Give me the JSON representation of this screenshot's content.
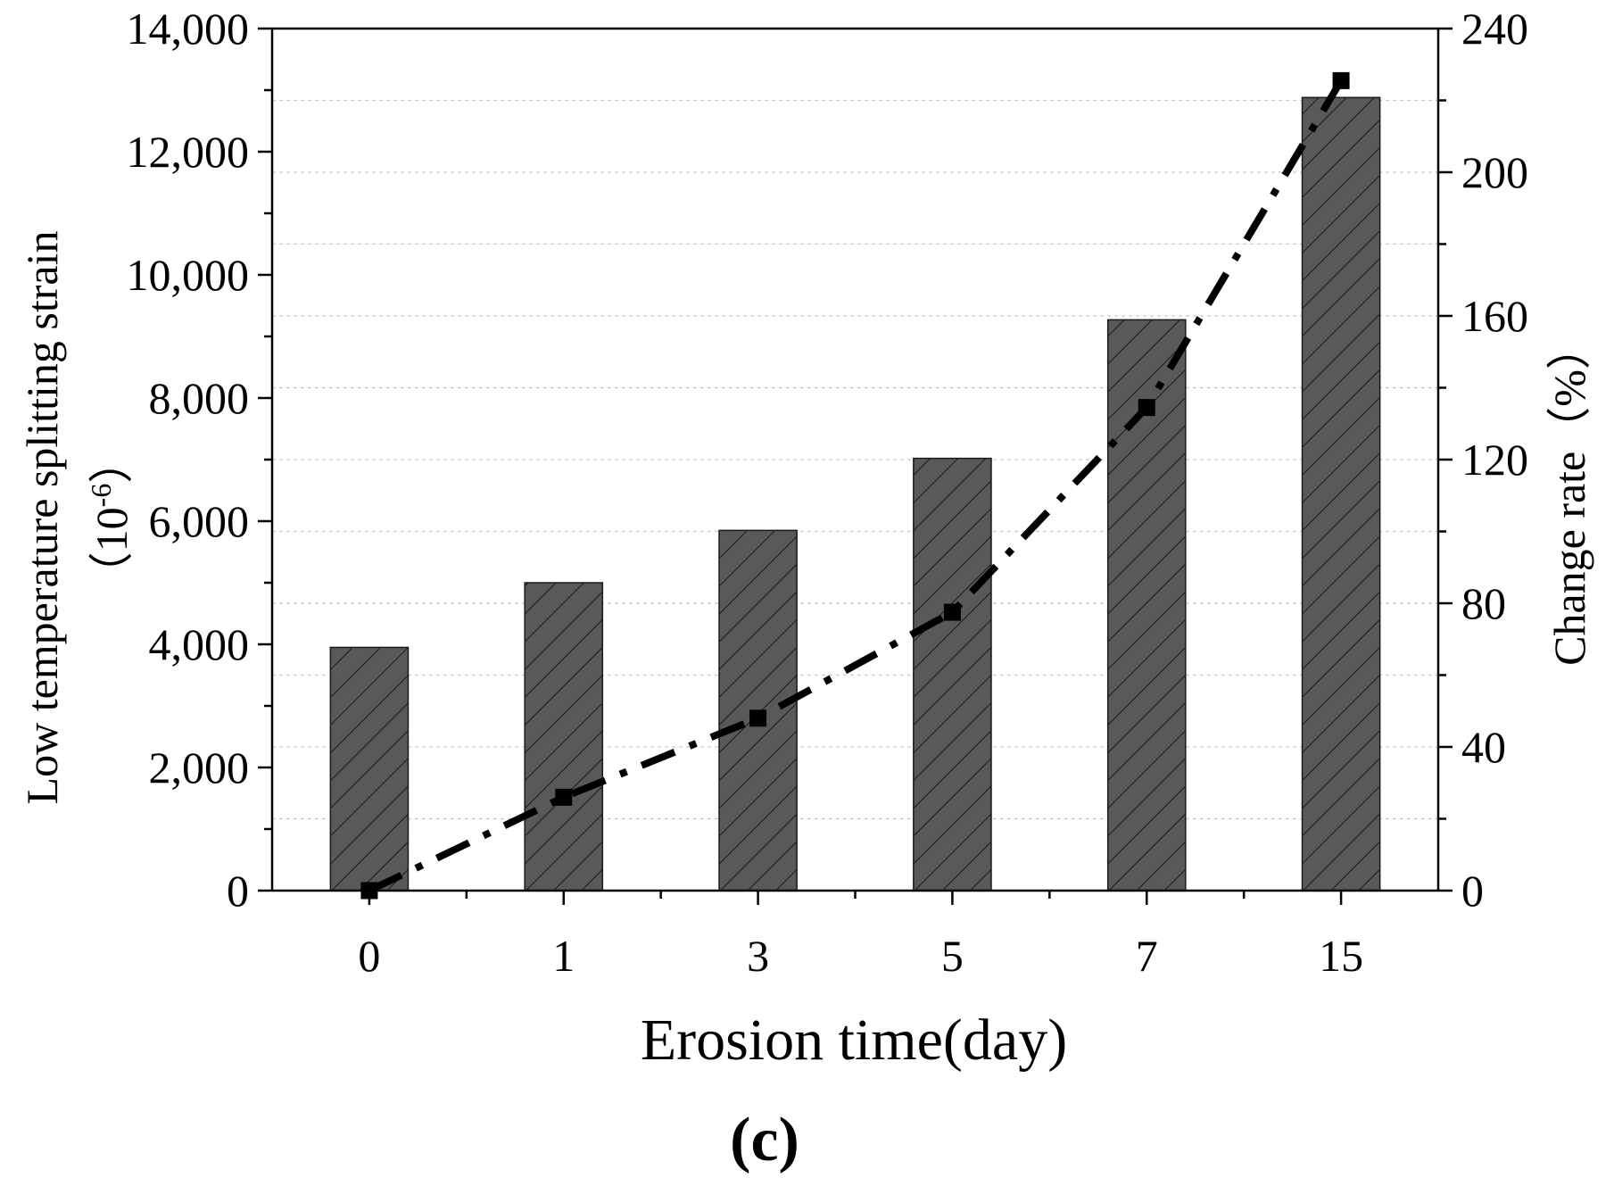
{
  "chart_data": {
    "type": "bar",
    "categories": [
      "0",
      "1",
      "3",
      "5",
      "7",
      "15"
    ],
    "xlabel": "Erosion time(day)",
    "ylabel": "Low temperature splitting strain",
    "ylabel_unit_open": "（10",
    "ylabel_unit_exp": "-6",
    "ylabel_unit_close": "）",
    "y2label": "Change rate（%）",
    "panel_label": "(c)",
    "ylim": [
      0,
      14000
    ],
    "y_ticks": [
      0,
      2000,
      4000,
      6000,
      8000,
      10000,
      12000,
      14000
    ],
    "y_tick_labels": [
      "0",
      "2,000",
      "4,000",
      "6,000",
      "8,000",
      "10,000",
      "12,000",
      "14,000"
    ],
    "y2lim": [
      0,
      240
    ],
    "y2_ticks": [
      0,
      40,
      80,
      120,
      160,
      200,
      240
    ],
    "y2_tick_labels": [
      "0",
      "40",
      "80",
      "120",
      "160",
      "200",
      "240"
    ],
    "grid": "horizontal dashed",
    "series": [
      {
        "type": "bar",
        "axis": "left",
        "values": [
          3950,
          5000,
          5850,
          7020,
          9270,
          12880
        ],
        "fill": "#595959",
        "pattern": "diagonal-hatch"
      },
      {
        "type": "line",
        "axis": "right",
        "values": [
          0,
          26,
          48,
          77.5,
          134.5,
          225.5
        ],
        "color": "#000000",
        "line_style": "dash-dot",
        "marker": "square"
      }
    ]
  }
}
